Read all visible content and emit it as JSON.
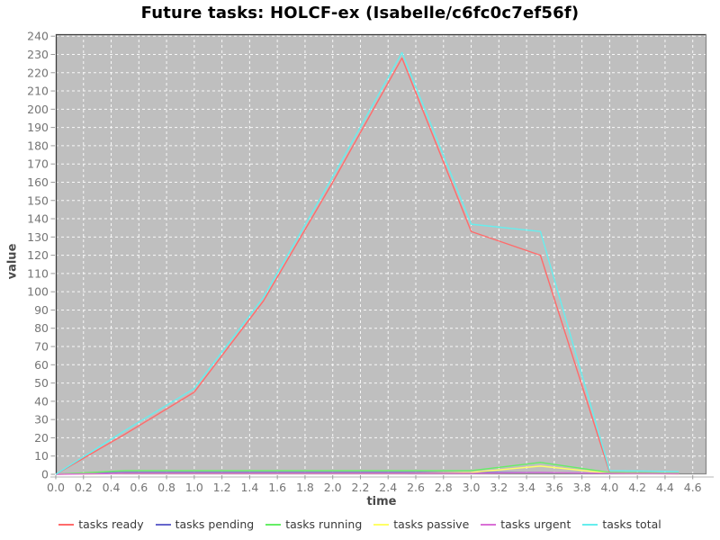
{
  "title": "Future tasks: HOLCF-ex (Isabelle/c6fc0c7ef56f)",
  "axes": {
    "x": {
      "label": "time",
      "ticks": [
        "0.0",
        "0.2",
        "0.4",
        "0.6",
        "0.8",
        "1.0",
        "1.2",
        "1.4",
        "1.6",
        "1.8",
        "2.0",
        "2.2",
        "2.4",
        "2.6",
        "2.8",
        "3.0",
        "3.2",
        "3.4",
        "3.6",
        "3.8",
        "4.0",
        "4.2",
        "4.4",
        "4.6"
      ]
    },
    "y": {
      "label": "value",
      "ticks": [
        "0",
        "10",
        "20",
        "30",
        "40",
        "50",
        "60",
        "70",
        "80",
        "90",
        "100",
        "110",
        "120",
        "130",
        "140",
        "150",
        "160",
        "170",
        "180",
        "190",
        "200",
        "210",
        "220",
        "230",
        "240"
      ]
    }
  },
  "colors": {
    "plot_background": "#bfbfbf",
    "grid": "#ffffff",
    "tick_text": "#757575",
    "axis_text": "#4a4a4a",
    "title_text": "#000000",
    "legend_text": "#3a3a3a",
    "border_dark": "#3f3f3f",
    "border_light": "#8a8a8a",
    "axis_line": "#b5b5b5",
    "tick_mark": "#999999"
  },
  "legend": {
    "items": [
      {
        "label": "tasks ready",
        "color": "#ff6b6b"
      },
      {
        "label": "tasks pending",
        "color": "#6666cc"
      },
      {
        "label": "tasks running",
        "color": "#66ee66"
      },
      {
        "label": "tasks passive",
        "color": "#ffff66"
      },
      {
        "label": "tasks urgent",
        "color": "#da70d6"
      },
      {
        "label": "tasks total",
        "color": "#66eeee"
      }
    ]
  },
  "chart_data": {
    "type": "line",
    "title": "Future tasks: HOLCF-ex (Isabelle/c6fc0c7ef56f)",
    "xlabel": "time",
    "ylabel": "value",
    "xlim": [
      0,
      4.6
    ],
    "ylim": [
      0,
      240
    ],
    "grid": true,
    "legend_position": "bottom",
    "x": [
      0,
      0.5,
      1.0,
      1.5,
      2.0,
      2.5,
      3.0,
      3.5,
      4.0,
      4.5
    ],
    "series": [
      {
        "name": "tasks ready",
        "color": "#ff6b6b",
        "values": [
          0,
          22,
          45,
          95,
          160,
          228,
          133,
          120,
          1,
          0.5
        ]
      },
      {
        "name": "tasks pending",
        "color": "#6666cc",
        "values": [
          0,
          1,
          1,
          1,
          1,
          1,
          1,
          1,
          0.5,
          0.3
        ]
      },
      {
        "name": "tasks running",
        "color": "#66ee66",
        "values": [
          0,
          2,
          2,
          2,
          2,
          2,
          2,
          6.5,
          1,
          0.5
        ]
      },
      {
        "name": "tasks passive",
        "color": "#ffff66",
        "values": [
          0,
          0.5,
          0.5,
          0.5,
          0.5,
          0.5,
          1,
          4.5,
          0.5,
          0.2
        ]
      },
      {
        "name": "tasks urgent",
        "color": "#da70d6",
        "values": [
          0,
          0.5,
          0.5,
          0.5,
          0.5,
          0.5,
          0.5,
          1,
          0.5,
          0.3
        ]
      },
      {
        "name": "tasks total",
        "color": "#66eeee",
        "values": [
          0,
          24,
          47,
          97,
          163,
          231,
          137,
          133,
          2,
          1.5
        ]
      }
    ]
  }
}
